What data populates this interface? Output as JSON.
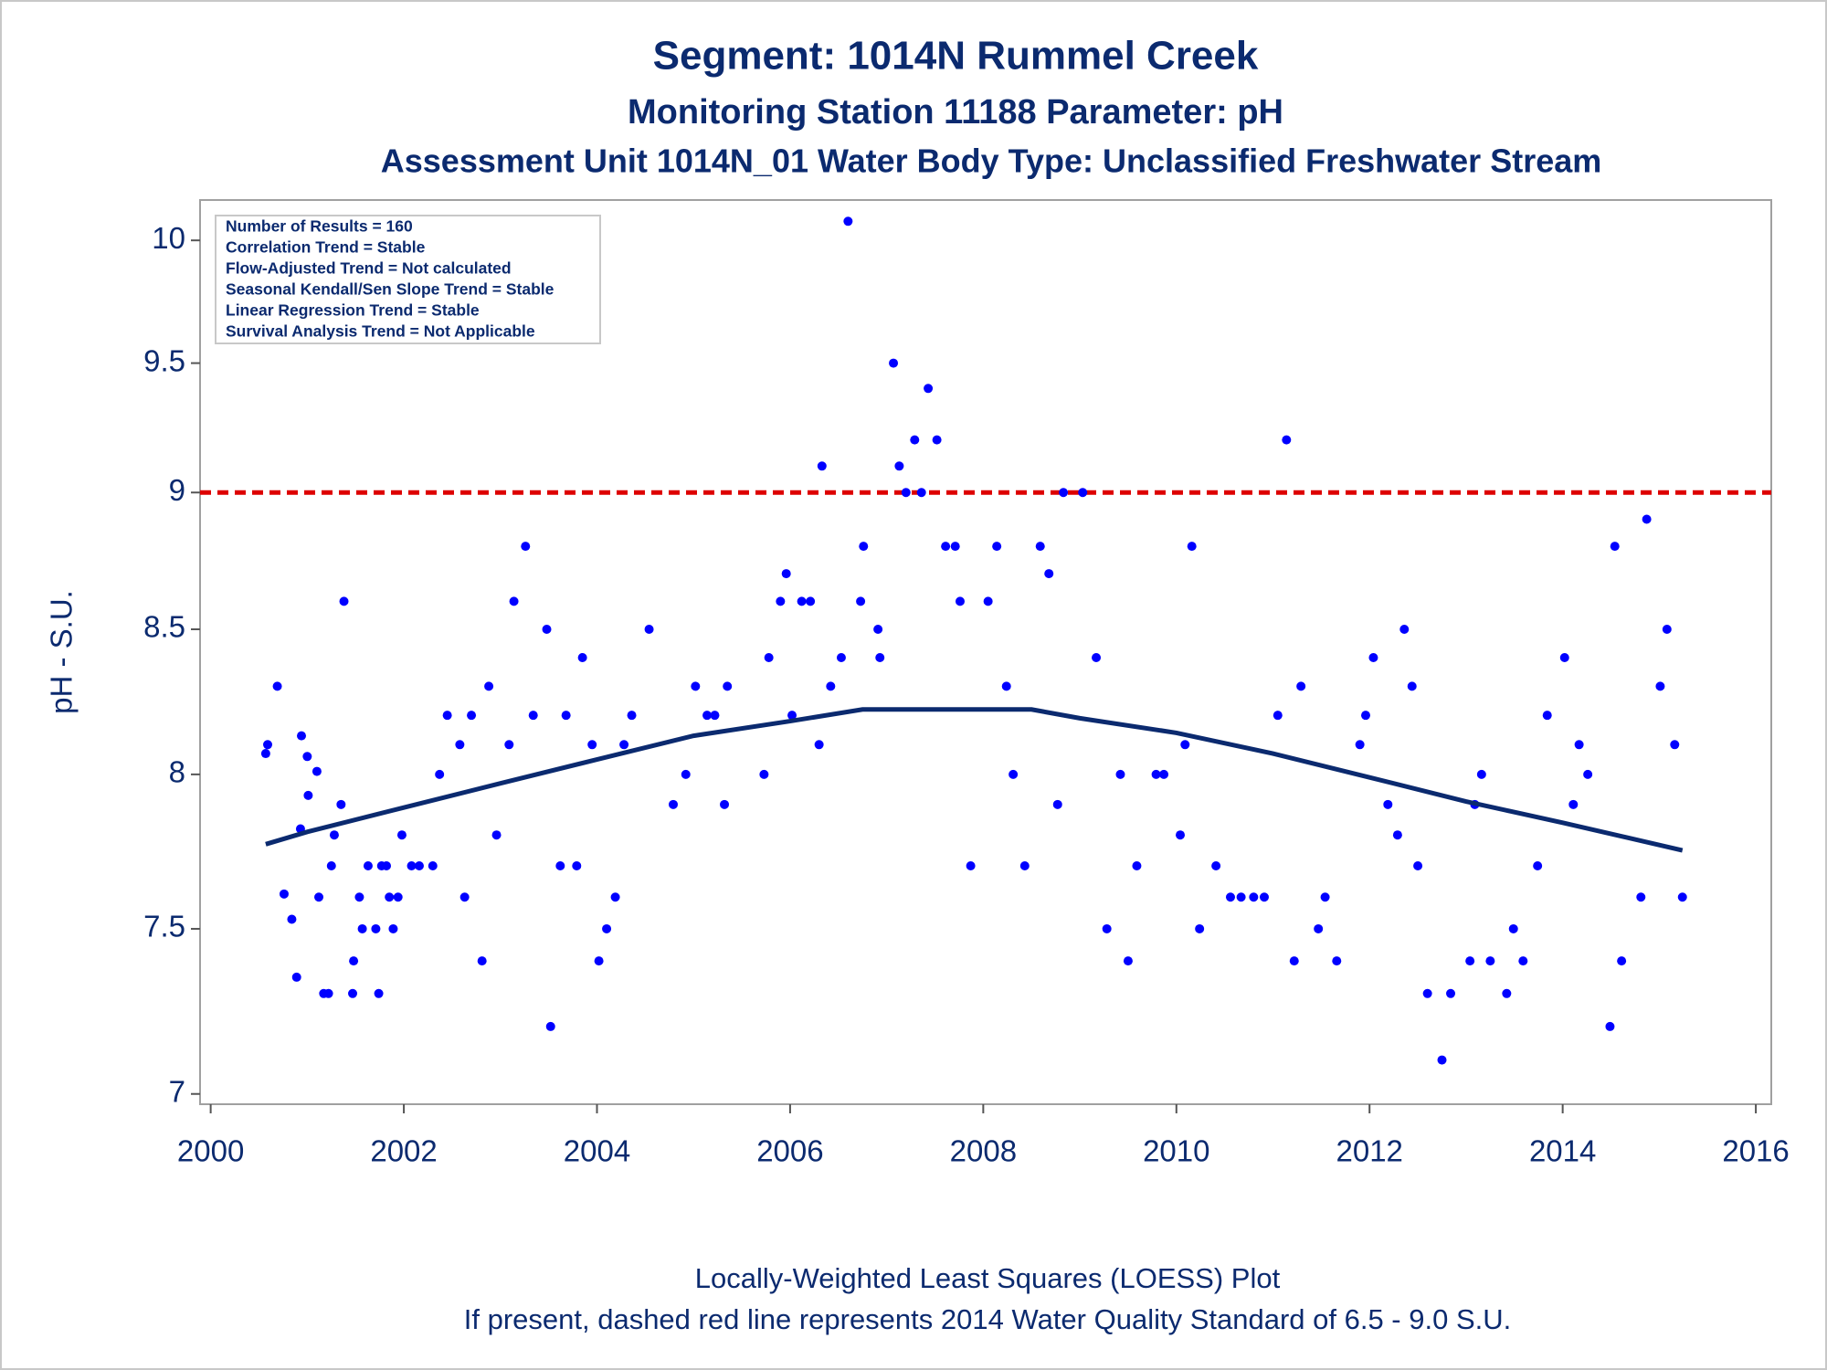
{
  "chart_data": {
    "type": "scatter",
    "title": "Segment: 1014N  Rummel Creek",
    "subtitles": [
      "Monitoring Station 11188 Parameter: pH",
      "Assessment Unit 1014N_01   Water Body Type: Unclassified Freshwater Stream"
    ],
    "y_label": "pH - S.U.",
    "annotations": [
      "Number of Results = 160",
      "Correlation Trend = Stable",
      "Flow-Adjusted Trend = Not calculated",
      "Seasonal Kendall/Sen Slope Trend = Stable",
      "Linear Regression Trend = Stable",
      "Survival Analysis Trend = Not Applicable"
    ],
    "footnotes": [
      "Locally-Weighted Least Squares (LOESS) Plot",
      "If present, dashed red line represents 2014 Water Quality Standard of 6.5 - 9.0 S.U."
    ],
    "xlim": [
      1999.89,
      2016.16
    ],
    "xticks": [
      2000,
      2002,
      2004,
      2006,
      2008,
      2010,
      2012,
      2014,
      2016
    ],
    "ylim": [
      6.97,
      10.17
    ],
    "yticks": [
      7,
      7.5,
      8,
      8.5,
      9,
      9.5,
      10
    ],
    "yscale": "log",
    "reference_lines": [
      {
        "value": 9,
        "color": "#dd0000",
        "dash": true
      }
    ],
    "series": [
      {
        "type": "scatter",
        "color": "#0000ff",
        "x": [
          2000.57,
          2000.59,
          2000.69,
          2000.76,
          2000.84,
          2000.89,
          2000.93,
          2000.94,
          2001.0,
          2001.01,
          2001.1,
          2001.12,
          2001.17,
          2001.22,
          2001.25,
          2001.28,
          2001.35,
          2001.38,
          2001.47,
          2001.48,
          2001.54,
          2001.57,
          2001.63,
          2001.71,
          2001.74,
          2001.77,
          2001.82,
          2001.85,
          2001.89,
          2001.94,
          2001.98,
          2002.08,
          2002.16,
          2002.3,
          2002.37,
          2002.45,
          2002.58,
          2002.63,
          2002.7,
          2002.81,
          2002.88,
          2002.96,
          2003.09,
          2003.14,
          2003.26,
          2003.34,
          2003.48,
          2003.52,
          2003.62,
          2003.68,
          2003.79,
          2003.85,
          2003.95,
          2004.02,
          2004.1,
          2004.19,
          2004.28,
          2004.36,
          2004.54,
          2004.79,
          2004.92,
          2005.02,
          2005.14,
          2005.22,
          2005.32,
          2005.35,
          2005.73,
          2005.78,
          2005.9,
          2005.96,
          2006.02,
          2006.12,
          2006.21,
          2006.3,
          2006.33,
          2006.42,
          2006.53,
          2006.6,
          2006.73,
          2006.76,
          2006.91,
          2006.93,
          2007.07,
          2007.13,
          2007.2,
          2007.29,
          2007.36,
          2007.43,
          2007.52,
          2007.61,
          2007.71,
          2007.76,
          2007.87,
          2008.05,
          2008.14,
          2008.24,
          2008.31,
          2008.43,
          2008.59,
          2008.68,
          2008.77,
          2008.83,
          2009.03,
          2009.17,
          2009.28,
          2009.42,
          2009.5,
          2009.59,
          2009.79,
          2009.87,
          2010.04,
          2010.09,
          2010.16,
          2010.24,
          2010.41,
          2010.56,
          2010.67,
          2010.8,
          2010.91,
          2011.05,
          2011.14,
          2011.22,
          2011.29,
          2011.47,
          2011.54,
          2011.66,
          2011.9,
          2011.96,
          2012.04,
          2012.19,
          2012.29,
          2012.36,
          2012.44,
          2012.5,
          2012.6,
          2012.75,
          2012.84,
          2013.04,
          2013.09,
          2013.16,
          2013.25,
          2013.42,
          2013.49,
          2013.59,
          2013.74,
          2013.84,
          2014.02,
          2014.11,
          2014.17,
          2014.26,
          2014.49,
          2014.54,
          2014.61,
          2014.81,
          2014.87,
          2015.01,
          2015.08,
          2015.16,
          2015.24
        ],
        "values": [
          8.07,
          8.1,
          8.3,
          7.61,
          7.53,
          7.35,
          7.82,
          8.13,
          8.06,
          7.93,
          8.01,
          7.6,
          7.3,
          7.3,
          7.7,
          7.8,
          7.9,
          8.6,
          7.3,
          7.4,
          7.6,
          7.5,
          7.7,
          7.5,
          7.3,
          7.7,
          7.7,
          7.6,
          7.5,
          7.6,
          7.8,
          7.7,
          7.7,
          7.7,
          8.0,
          8.2,
          8.1,
          7.6,
          8.2,
          7.4,
          8.3,
          7.8,
          8.1,
          8.6,
          8.8,
          8.2,
          8.5,
          7.2,
          7.7,
          8.2,
          7.7,
          8.4,
          8.1,
          7.4,
          7.5,
          7.6,
          8.1,
          8.2,
          8.5,
          7.9,
          8.0,
          8.3,
          8.2,
          8.2,
          7.9,
          8.3,
          8.0,
          8.4,
          8.6,
          8.7,
          8.2,
          8.6,
          8.6,
          8.1,
          9.1,
          8.3,
          8.4,
          10.08,
          8.6,
          8.8,
          8.5,
          8.4,
          9.5,
          9.1,
          9.0,
          9.2,
          9.0,
          9.4,
          9.2,
          8.8,
          8.8,
          8.6,
          7.7,
          8.6,
          8.8,
          8.3,
          8.0,
          7.7,
          8.8,
          8.7,
          7.9,
          9.0,
          9.0,
          8.4,
          7.5,
          8.0,
          7.4,
          7.7,
          8.0,
          8.0,
          7.8,
          8.1,
          8.8,
          7.5,
          7.7,
          7.6,
          7.6,
          7.6,
          7.6,
          8.2,
          9.2,
          7.4,
          8.3,
          7.5,
          7.6,
          7.4,
          8.1,
          8.2,
          8.4,
          7.9,
          7.8,
          8.5,
          8.3,
          7.7,
          7.3,
          7.1,
          7.3,
          7.4,
          7.9,
          8.0,
          7.4,
          7.3,
          7.5,
          7.4,
          7.7,
          8.2,
          8.4,
          7.9,
          8.1,
          8.0,
          7.2,
          8.8,
          7.4,
          7.6,
          8.9,
          8.3,
          8.5,
          8.1,
          7.6
        ]
      },
      {
        "type": "line",
        "color": "#0b2a6f",
        "x": [
          2000.57,
          2001,
          2002,
          2003,
          2004,
          2005,
          2006,
          2006.75,
          2007,
          2007.5,
          2008,
          2008.5,
          2009,
          2010,
          2011,
          2012,
          2013,
          2014,
          2015.24
        ],
        "values": [
          7.77,
          7.81,
          7.89,
          7.97,
          8.05,
          8.13,
          8.18,
          8.22,
          8.22,
          8.22,
          8.22,
          8.22,
          8.19,
          8.14,
          8.07,
          7.99,
          7.91,
          7.84,
          7.75
        ]
      }
    ]
  }
}
